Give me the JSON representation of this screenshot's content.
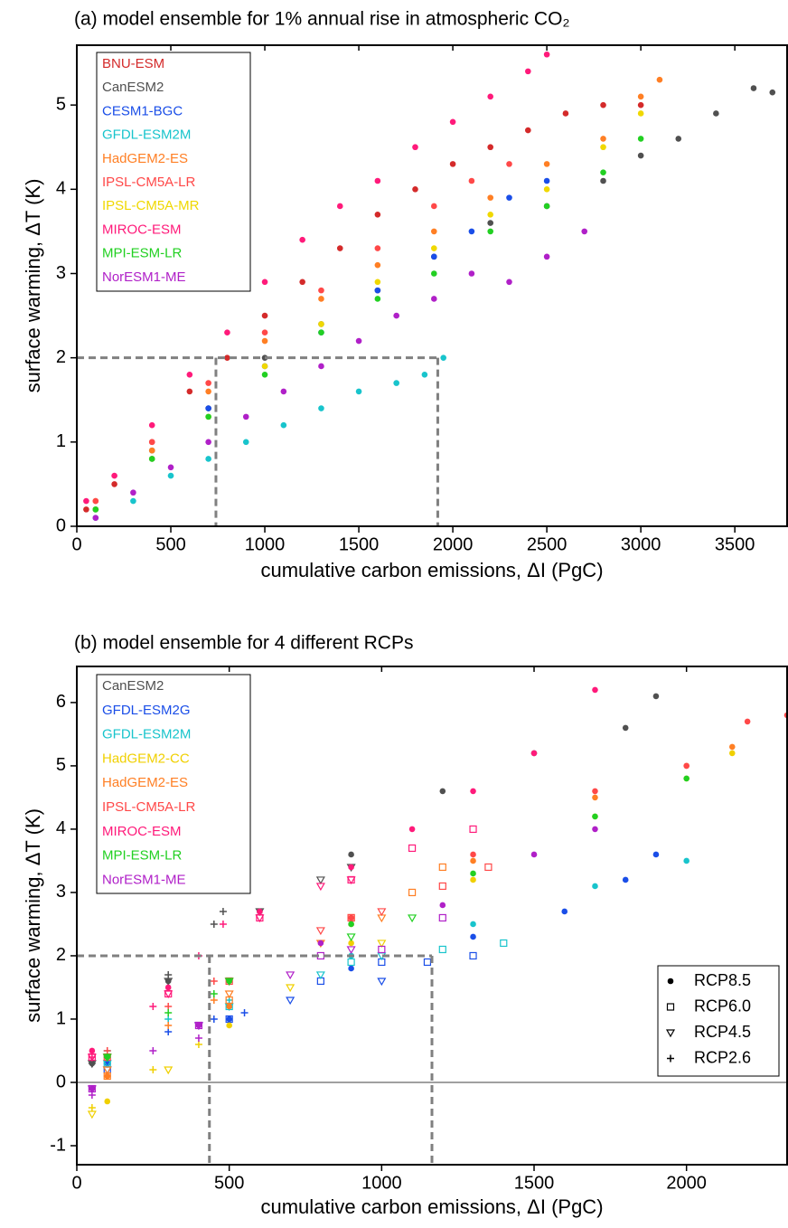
{
  "chart_data": [
    {
      "type": "scatter",
      "title": "(a) model ensemble for 1% annual rise in atmospheric CO₂",
      "xlabel": "cumulative carbon emissions, ΔI  (PgC)",
      "ylabel": "surface warming, ΔT  (K)",
      "xlim": [
        0,
        3778
      ],
      "ylim": [
        0,
        5.71
      ],
      "xticks": [
        0,
        500,
        1000,
        1500,
        2000,
        2500,
        3000,
        3500
      ],
      "yticks": [
        0,
        1,
        2,
        3,
        4,
        5
      ],
      "guides": {
        "y": 2,
        "x": [
          740,
          1920
        ]
      },
      "marker": "circle",
      "series": [
        {
          "name": "BNU-ESM",
          "color": "#d42a2a",
          "x": [
            50,
            200,
            400,
            600,
            800,
            1000,
            1200,
            1400,
            1600,
            1800,
            2000,
            2200,
            2400,
            2600,
            2800,
            3000
          ],
          "values": [
            0.2,
            0.5,
            1.0,
            1.6,
            2.0,
            2.5,
            2.9,
            3.3,
            3.7,
            4.0,
            4.3,
            4.5,
            4.7,
            4.9,
            5.0,
            5.0
          ]
        },
        {
          "name": "CanESM2",
          "color": "#505050",
          "x": [
            100,
            400,
            700,
            1000,
            1300,
            1600,
            1900,
            2200,
            2500,
            2800,
            3000,
            3200,
            3400,
            3600,
            3700
          ],
          "values": [
            0.2,
            0.9,
            1.4,
            2.0,
            2.4,
            2.8,
            3.2,
            3.6,
            3.8,
            4.1,
            4.4,
            4.6,
            4.9,
            5.2,
            5.15
          ]
        },
        {
          "name": "CESM1-BGC",
          "color": "#1a4ee8",
          "x": [
            100,
            400,
            700,
            1000,
            1300,
            1600,
            1900,
            2100,
            2300,
            2500
          ],
          "values": [
            0.2,
            0.8,
            1.4,
            1.9,
            2.3,
            2.8,
            3.2,
            3.5,
            3.9,
            4.1
          ]
        },
        {
          "name": "GFDL-ESM2M",
          "color": "#18c4cc",
          "x": [
            100,
            300,
            500,
            700,
            900,
            1100,
            1300,
            1500,
            1700,
            1850,
            1950
          ],
          "values": [
            0.1,
            0.3,
            0.6,
            0.8,
            1.0,
            1.2,
            1.4,
            1.6,
            1.7,
            1.8,
            2.0
          ]
        },
        {
          "name": "HadGEM2-ES",
          "color": "#ff7f24",
          "x": [
            100,
            400,
            700,
            1000,
            1300,
            1600,
            1900,
            2200,
            2500,
            2800,
            3000,
            3100
          ],
          "values": [
            0.3,
            0.9,
            1.6,
            2.2,
            2.7,
            3.1,
            3.5,
            3.9,
            4.3,
            4.6,
            5.1,
            5.3
          ]
        },
        {
          "name": "IPSL-CM5A-LR",
          "color": "#ff4848",
          "x": [
            100,
            400,
            700,
            1000,
            1300,
            1600,
            1900,
            2100,
            2300
          ],
          "values": [
            0.3,
            1.0,
            1.7,
            2.3,
            2.8,
            3.3,
            3.8,
            4.1,
            4.3
          ]
        },
        {
          "name": "IPSL-CM5A-MR",
          "color": "#f0d800",
          "x": [
            100,
            400,
            700,
            1000,
            1300,
            1600,
            1900,
            2200,
            2500,
            2800,
            3000
          ],
          "values": [
            0.2,
            0.8,
            1.3,
            1.9,
            2.4,
            2.9,
            3.3,
            3.7,
            4.0,
            4.5,
            4.9
          ]
        },
        {
          "name": "MIROC-ESM",
          "color": "#ff1a7a",
          "x": [
            50,
            200,
            400,
            600,
            800,
            1000,
            1200,
            1400,
            1600,
            1800,
            2000,
            2200,
            2400,
            2500
          ],
          "values": [
            0.3,
            0.6,
            1.2,
            1.8,
            2.3,
            2.9,
            3.4,
            3.8,
            4.1,
            4.5,
            4.8,
            5.1,
            5.4,
            5.6
          ]
        },
        {
          "name": "MPI-ESM-LR",
          "color": "#22d022",
          "x": [
            100,
            400,
            700,
            1000,
            1300,
            1600,
            1900,
            2200,
            2500,
            2800,
            3000
          ],
          "values": [
            0.2,
            0.8,
            1.3,
            1.8,
            2.3,
            2.7,
            3.0,
            3.5,
            3.8,
            4.2,
            4.6
          ]
        },
        {
          "name": "NorESM1-ME",
          "color": "#b020c8",
          "x": [
            100,
            300,
            500,
            700,
            900,
            1100,
            1300,
            1500,
            1700,
            1900,
            2100,
            2300,
            2500,
            2700
          ],
          "values": [
            0.1,
            0.4,
            0.7,
            1.0,
            1.3,
            1.6,
            1.9,
            2.2,
            2.5,
            2.7,
            3.0,
            2.9,
            3.2,
            3.5
          ]
        }
      ]
    },
    {
      "type": "scatter",
      "title": "(b) model ensemble for 4 different RCPs",
      "xlabel": "cumulative carbon emissions, ΔI  (PgC)",
      "ylabel": "surface warming, ΔT  (K)",
      "xlim": [
        0,
        2330
      ],
      "ylim": [
        -1.3,
        6.57
      ],
      "xticks": [
        0,
        500,
        1000,
        1500,
        2000
      ],
      "yticks": [
        -1,
        0,
        1,
        2,
        3,
        4,
        5,
        6
      ],
      "zero_line": true,
      "guides": {
        "y": 2,
        "x": [
          435,
          1165
        ]
      },
      "scenarios": [
        {
          "name": "RCP8.5",
          "marker": "circle"
        },
        {
          "name": "RCP6.0",
          "marker": "square"
        },
        {
          "name": "RCP4.5",
          "marker": "triangle-down"
        },
        {
          "name": "RCP2.6",
          "marker": "plus"
        }
      ],
      "series": [
        {
          "name": "CanESM2",
          "color": "#505050",
          "runs": [
            {
              "x": [
                50,
                300,
                600,
                900,
                1200,
                1500,
                1800,
                1900
              ],
              "values": [
                0.3,
                1.6,
                2.7,
                3.6,
                4.6,
                5.2,
                5.6,
                6.1
              ]
            },
            null,
            {
              "x": [
                50,
                300,
                600,
                800,
                900
              ],
              "values": [
                0.3,
                1.6,
                2.7,
                3.2,
                3.4
              ]
            },
            {
              "x": [
                50,
                300,
                450,
                480
              ],
              "values": [
                0.3,
                1.7,
                2.5,
                2.7
              ]
            }
          ]
        },
        {
          "name": "GFDL-ESM2G",
          "color": "#1a4ee8",
          "runs": [
            {
              "x": [
                100,
                500,
                900,
                1300,
                1600,
                1800,
                1900
              ],
              "values": [
                0.3,
                1.0,
                1.8,
                2.3,
                2.7,
                3.2,
                3.6
              ]
            },
            {
              "x": [
                100,
                500,
                800,
                1000,
                1150,
                1300
              ],
              "values": [
                0.2,
                1.0,
                1.6,
                1.9,
                1.9,
                2.0
              ]
            },
            {
              "x": [
                100,
                400,
                700,
                1000
              ],
              "values": [
                0.2,
                0.9,
                1.3,
                1.6
              ]
            },
            {
              "x": [
                100,
                300,
                450,
                550
              ],
              "values": [
                0.3,
                0.8,
                1.0,
                1.1
              ]
            }
          ]
        },
        {
          "name": "GFDL-ESM2M",
          "color": "#18c4cc",
          "runs": [
            {
              "x": [
                100,
                500,
                900,
                1300,
                1700,
                2000
              ],
              "values": [
                0.4,
                1.2,
                2.0,
                2.5,
                3.1,
                3.5
              ]
            },
            {
              "x": [
                100,
                500,
                900,
                1200,
                1400
              ],
              "values": [
                0.3,
                1.2,
                1.9,
                2.1,
                2.2
              ]
            },
            {
              "x": [
                100,
                500,
                800,
                1000
              ],
              "values": [
                0.3,
                1.2,
                1.7,
                2.0
              ]
            },
            {
              "x": [
                100,
                300,
                500
              ],
              "values": [
                0.5,
                1.0,
                1.3
              ]
            }
          ]
        },
        {
          "name": "HadGEM2-CC",
          "color": "#f0d000",
          "runs": [
            {
              "x": [
                100,
                500,
                900,
                1300,
                1700,
                2000,
                2150
              ],
              "values": [
                -0.3,
                0.9,
                2.2,
                3.2,
                4.2,
                4.8,
                5.2
              ]
            },
            null,
            {
              "x": [
                50,
                300,
                700,
                1000
              ],
              "values": [
                -0.5,
                0.2,
                1.5,
                2.2
              ]
            },
            {
              "x": [
                50,
                250,
                400
              ],
              "values": [
                -0.4,
                0.2,
                0.6
              ]
            }
          ]
        },
        {
          "name": "HadGEM2-ES",
          "color": "#ff7f24",
          "runs": [
            {
              "x": [
                100,
                500,
                900,
                1300,
                1700,
                2000,
                2150
              ],
              "values": [
                0.1,
                1.2,
                2.5,
                3.5,
                4.5,
                5.0,
                5.3
              ]
            },
            {
              "x": [
                100,
                500,
                900,
                1100,
                1200
              ],
              "values": [
                0.1,
                1.3,
                2.6,
                3.0,
                3.4
              ]
            },
            {
              "x": [
                100,
                500,
                800,
                1000
              ],
              "values": [
                0.2,
                1.4,
                2.2,
                2.6
              ]
            },
            {
              "x": [
                100,
                300,
                450
              ],
              "values": [
                0.1,
                0.9,
                1.3
              ]
            }
          ]
        },
        {
          "name": "IPSL-CM5A-LR",
          "color": "#ff4848",
          "runs": [
            {
              "x": [
                100,
                500,
                900,
                1300,
                1700,
                2000,
                2200,
                2330
              ],
              "values": [
                0.4,
                1.6,
                2.6,
                3.6,
                4.6,
                5.0,
                5.7,
                5.8
              ]
            },
            {
              "x": [
                100,
                500,
                900,
                1200,
                1350
              ],
              "values": [
                0.4,
                1.6,
                2.6,
                3.1,
                3.4
              ]
            },
            {
              "x": [
                100,
                500,
                800,
                1000
              ],
              "values": [
                0.4,
                1.6,
                2.4,
                2.7
              ]
            },
            {
              "x": [
                100,
                300,
                450
              ],
              "values": [
                0.5,
                1.2,
                1.6
              ]
            }
          ]
        },
        {
          "name": "MIROC-ESM",
          "color": "#ff1a7a",
          "runs": [
            {
              "x": [
                50,
                300,
                600,
                900,
                1100,
                1300,
                1500,
                1700
              ],
              "values": [
                0.5,
                1.5,
                2.7,
                3.4,
                4.0,
                4.6,
                5.2,
                6.2
              ]
            },
            {
              "x": [
                50,
                300,
                600,
                900,
                1100,
                1300
              ],
              "values": [
                0.4,
                1.4,
                2.6,
                3.2,
                3.7,
                4.0
              ]
            },
            {
              "x": [
                50,
                300,
                600,
                800,
                900
              ],
              "values": [
                0.4,
                1.4,
                2.6,
                3.1,
                3.2
              ]
            },
            {
              "x": [
                50,
                250,
                400,
                480
              ],
              "values": [
                0.4,
                1.2,
                2.0,
                2.5
              ]
            }
          ]
        },
        {
          "name": "MPI-ESM-LR",
          "color": "#22d022",
          "runs": [
            {
              "x": [
                100,
                500,
                900,
                1300,
                1700,
                2000
              ],
              "values": [
                0.4,
                1.6,
                2.5,
                3.3,
                4.2,
                4.8
              ]
            },
            null,
            {
              "x": [
                100,
                500,
                900,
                1100
              ],
              "values": [
                0.4,
                1.6,
                2.3,
                2.6
              ]
            },
            {
              "x": [
                100,
                300,
                450
              ],
              "values": [
                0.4,
                1.1,
                1.4
              ]
            }
          ]
        },
        {
          "name": "NorESM1-ME",
          "color": "#b020c8",
          "runs": [
            {
              "x": [
                50,
                400,
                800,
                1200,
                1500,
                1700
              ],
              "values": [
                -0.1,
                0.9,
                2.2,
                2.8,
                3.6,
                4.0
              ]
            },
            {
              "x": [
                50,
                400,
                800,
                1000,
                1200
              ],
              "values": [
                -0.1,
                0.9,
                2.0,
                2.1,
                2.6
              ]
            },
            {
              "x": [
                50,
                400,
                700,
                900
              ],
              "values": [
                -0.1,
                0.9,
                1.7,
                2.1
              ]
            },
            {
              "x": [
                50,
                250,
                400
              ],
              "values": [
                -0.2,
                0.5,
                0.7
              ]
            }
          ]
        }
      ]
    }
  ]
}
